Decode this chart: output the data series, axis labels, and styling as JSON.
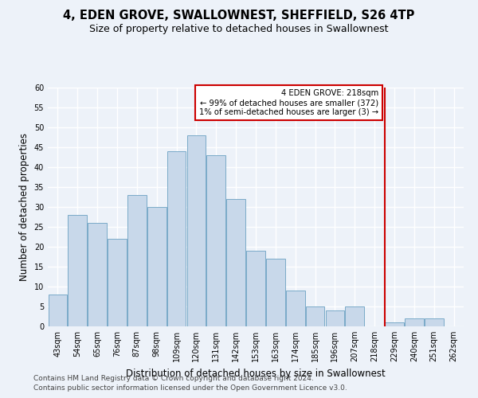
{
  "title": "4, EDEN GROVE, SWALLOWNEST, SHEFFIELD, S26 4TP",
  "subtitle": "Size of property relative to detached houses in Swallownest",
  "xlabel": "Distribution of detached houses by size in Swallownest",
  "ylabel": "Number of detached properties",
  "categories": [
    "43sqm",
    "54sqm",
    "65sqm",
    "76sqm",
    "87sqm",
    "98sqm",
    "109sqm",
    "120sqm",
    "131sqm",
    "142sqm",
    "153sqm",
    "163sqm",
    "174sqm",
    "185sqm",
    "196sqm",
    "207sqm",
    "218sqm",
    "229sqm",
    "240sqm",
    "251sqm",
    "262sqm"
  ],
  "bar_values": [
    8,
    28,
    26,
    22,
    33,
    30,
    44,
    48,
    43,
    32,
    19,
    17,
    9,
    5,
    4,
    5,
    0,
    1,
    2,
    2,
    0
  ],
  "bar_color": "#c8d8ea",
  "bar_edge_color": "#7aaac8",
  "annotation_text": "4 EDEN GROVE: 218sqm\n← 99% of detached houses are smaller (372)\n1% of semi-detached houses are larger (3) →",
  "vline_x": 16.5,
  "vline_color": "#cc0000",
  "annotation_box_color": "#ffffff",
  "annotation_box_edge": "#cc0000",
  "ylim": [
    0,
    60
  ],
  "yticks": [
    0,
    5,
    10,
    15,
    20,
    25,
    30,
    35,
    40,
    45,
    50,
    55,
    60
  ],
  "footer1": "Contains HM Land Registry data © Crown copyright and database right 2024.",
  "footer2": "Contains public sector information licensed under the Open Government Licence v3.0.",
  "bg_color": "#edf2f9",
  "plot_bg_color": "#edf2f9",
  "grid_color": "#ffffff",
  "title_fontsize": 10.5,
  "subtitle_fontsize": 9,
  "label_fontsize": 8.5,
  "tick_fontsize": 7,
  "footer_fontsize": 6.5
}
